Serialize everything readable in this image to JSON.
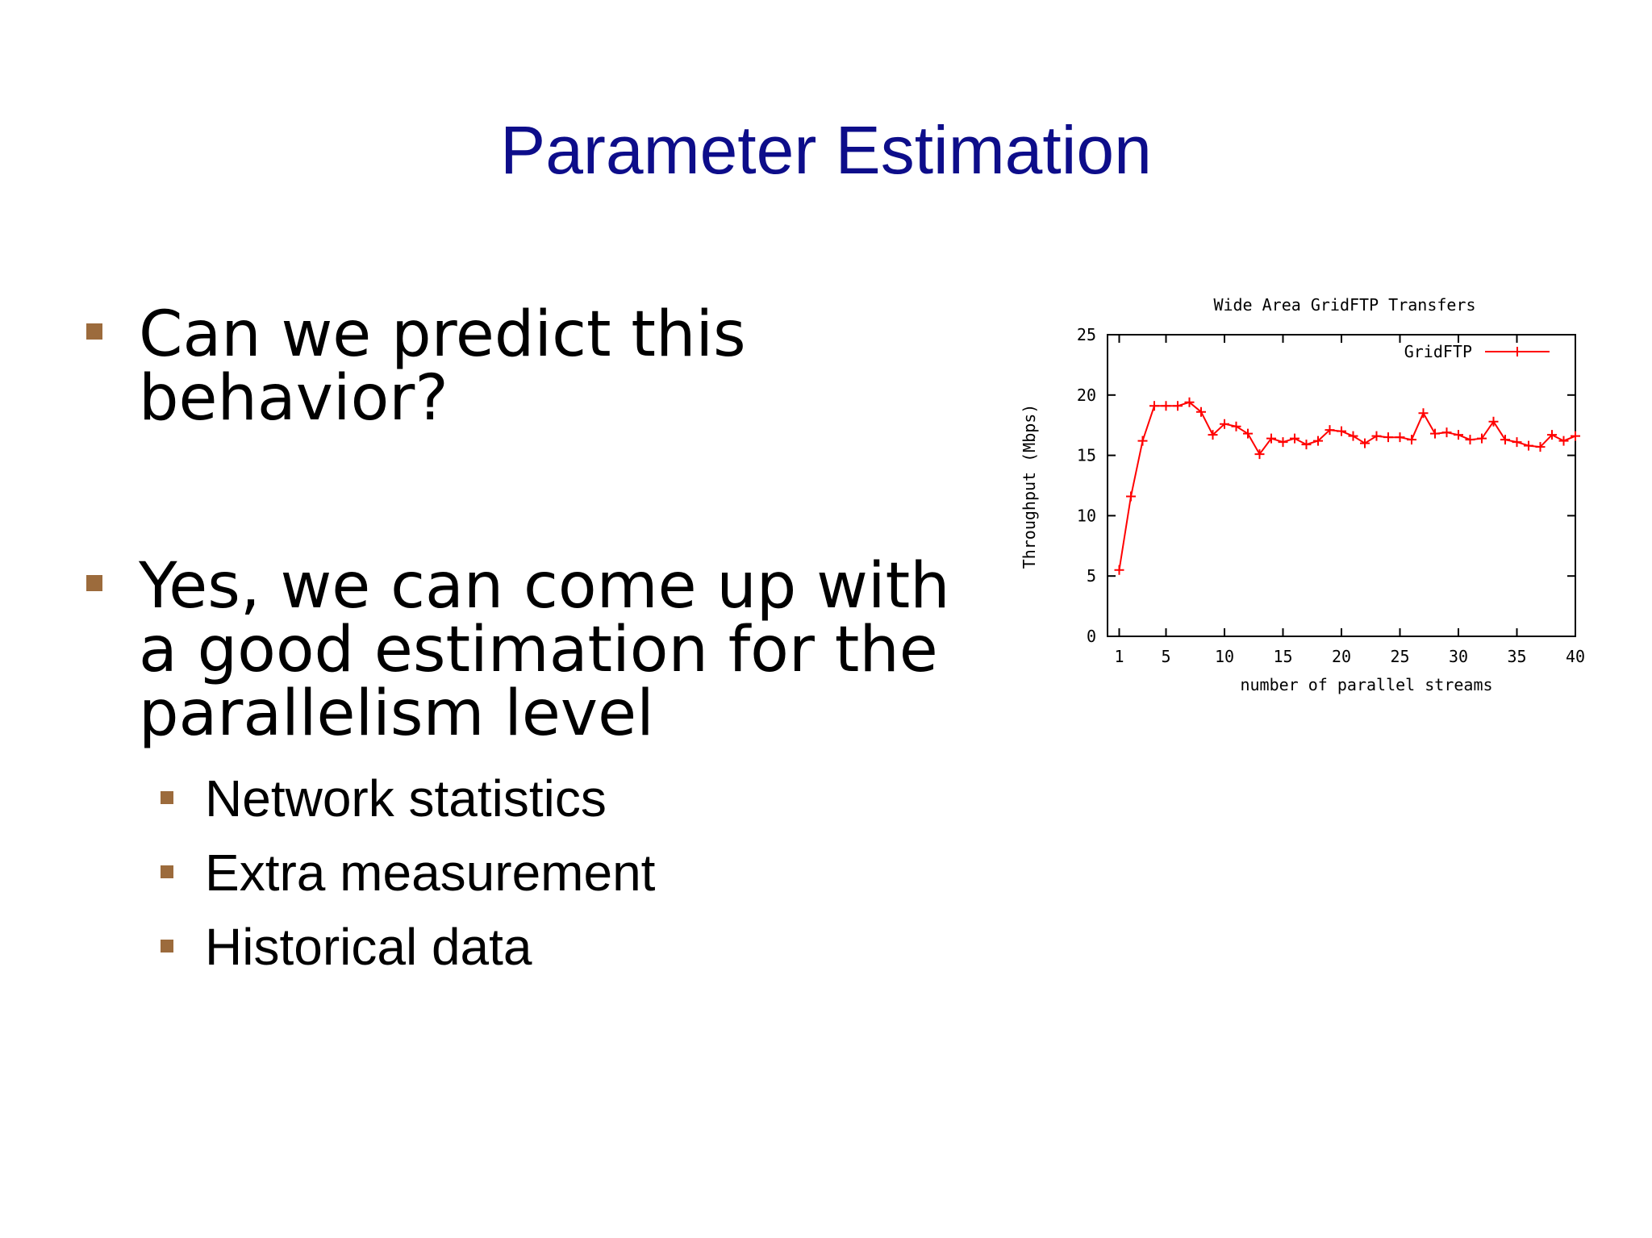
{
  "slide": {
    "title": "Parameter Estimation",
    "bullets": [
      {
        "lines": [
          "Can we predict this",
          "behavior?"
        ]
      },
      {
        "lines": [
          "Yes, we can come up with",
          "a good estimation for the",
          "parallelism level"
        ]
      }
    ],
    "sub_bullets": [
      "Network statistics",
      "Extra measurement",
      "Historical data"
    ]
  },
  "colors": {
    "title": "#0d0d8a",
    "bullet": "#9c6b3c",
    "series": "#ff0000"
  },
  "chart_data": {
    "type": "line",
    "title": "Wide Area GridFTP Transfers",
    "xlabel": "number of parallel streams",
    "ylabel": "Throughput (Mbps)",
    "xlim": [
      0,
      40
    ],
    "ylim": [
      0,
      25
    ],
    "xticks": [
      1,
      5,
      10,
      15,
      20,
      25,
      30,
      35,
      40
    ],
    "yticks": [
      0,
      5,
      10,
      15,
      20,
      25
    ],
    "legend": "top-right",
    "grid": false,
    "series": [
      {
        "name": "GridFTP",
        "x": [
          1,
          2,
          3,
          4,
          5,
          6,
          7,
          8,
          9,
          10,
          11,
          12,
          13,
          14,
          15,
          16,
          17,
          18,
          19,
          20,
          21,
          22,
          23,
          24,
          25,
          26,
          27,
          28,
          29,
          30,
          31,
          32,
          33,
          34,
          35,
          36,
          37,
          38,
          39,
          40
        ],
        "y": [
          5.5,
          11.6,
          16.2,
          19.1,
          19.1,
          19.1,
          19.4,
          18.6,
          16.7,
          17.6,
          17.4,
          16.8,
          15.1,
          16.4,
          16.1,
          16.4,
          15.9,
          16.2,
          17.1,
          17.0,
          16.6,
          16.0,
          16.6,
          16.5,
          16.5,
          16.3,
          18.5,
          16.8,
          16.9,
          16.7,
          16.3,
          16.4,
          17.8,
          16.3,
          16.1,
          15.8,
          15.7,
          16.7,
          16.2,
          16.6
        ]
      }
    ]
  }
}
